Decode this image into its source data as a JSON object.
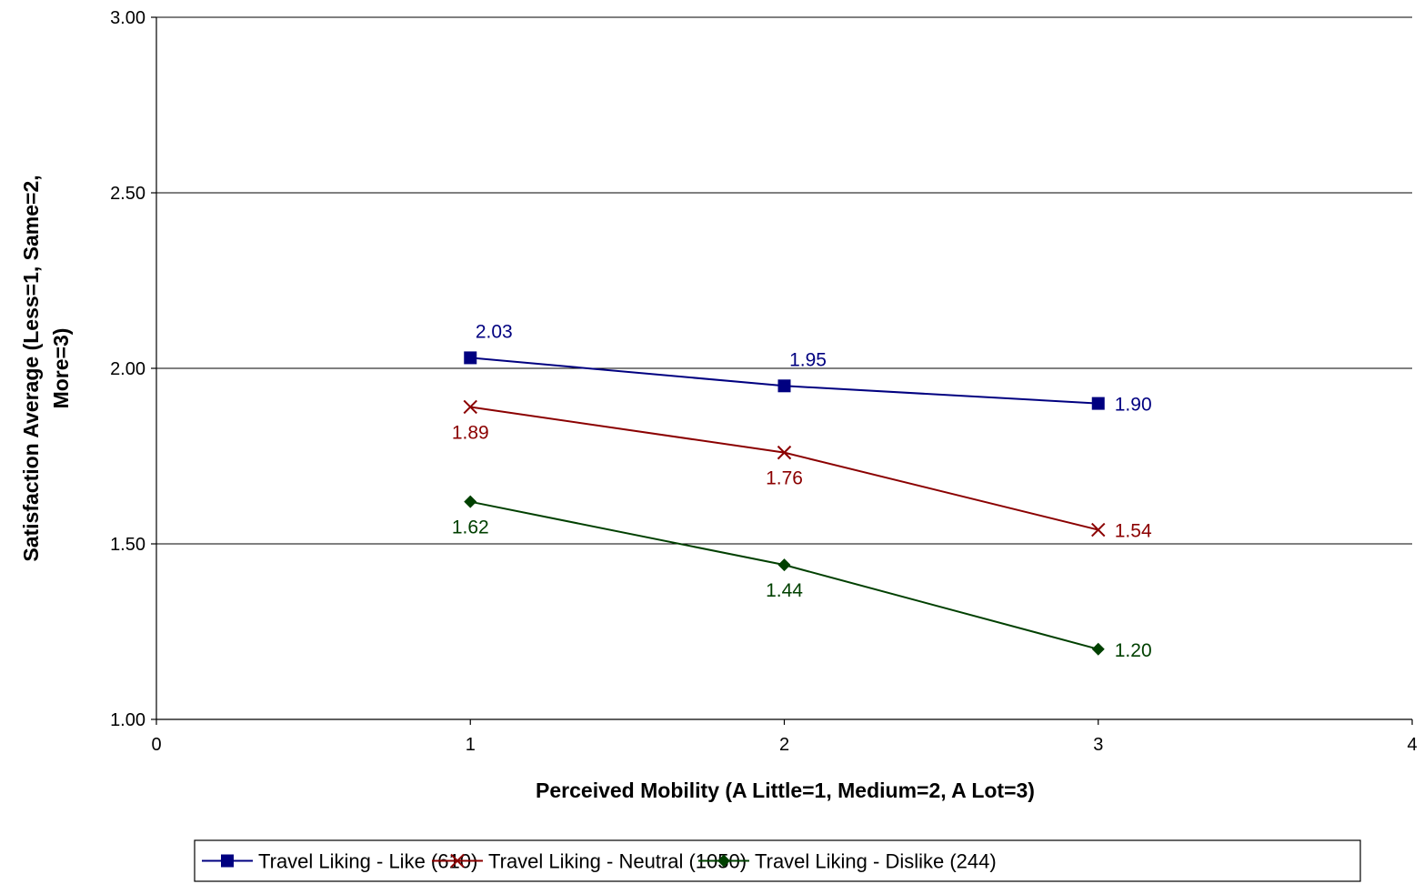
{
  "chart_data": {
    "type": "line",
    "title": "",
    "xlabel": "Perceived Mobility (A Little=1, Medium=2, A Lot=3)",
    "ylabel_lines": [
      "Satisfaction Average (Less=1, Same=2,",
      "More=3)"
    ],
    "xlim": [
      0,
      4
    ],
    "ylim": [
      1.0,
      3.0
    ],
    "x_ticks": [
      0,
      1,
      2,
      3,
      4
    ],
    "y_ticks": [
      1.0,
      1.5,
      2.0,
      2.5,
      3.0
    ],
    "x_tick_labels": [
      "0",
      "1",
      "2",
      "3",
      "4"
    ],
    "y_tick_labels": [
      "1.00",
      "1.50",
      "2.00",
      "2.50",
      "3.00"
    ],
    "grid": "horizontal",
    "legend_position": "bottom",
    "series": [
      {
        "name": "Travel Liking - Like (610)",
        "color": "#000080",
        "marker": "square",
        "x": [
          1,
          2,
          3
        ],
        "y": [
          2.03,
          1.95,
          1.9
        ],
        "labels": [
          "2.03",
          "1.95",
          "1.90"
        ],
        "label_pos": [
          "above",
          "above",
          "right"
        ]
      },
      {
        "name": "Travel Liking - Neutral (1050)",
        "color": "#8B0000",
        "marker": "x",
        "x": [
          1,
          2,
          3
        ],
        "y": [
          1.89,
          1.76,
          1.54
        ],
        "labels": [
          "1.89",
          "1.76",
          "1.54"
        ],
        "label_pos": [
          "below",
          "below",
          "right"
        ]
      },
      {
        "name": "Travel Liking - Dislike (244)",
        "color": "#004000",
        "marker": "diamond",
        "x": [
          1,
          2,
          3
        ],
        "y": [
          1.62,
          1.44,
          1.2
        ],
        "labels": [
          "1.62",
          "1.44",
          "1.20"
        ],
        "label_pos": [
          "below",
          "below",
          "right"
        ]
      }
    ]
  }
}
